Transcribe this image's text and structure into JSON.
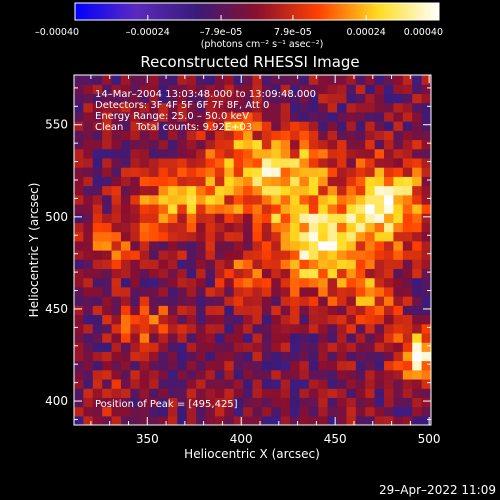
{
  "chart_data": {
    "type": "heatmap",
    "title": "Reconstructed RHESSI Image",
    "xlabel": "Heliocentric X (arcsec)",
    "ylabel": "Heliocentric Y (arcsec)",
    "xlim": [
      311,
      501
    ],
    "ylim": [
      387,
      577
    ],
    "x_ticks": [
      350,
      400,
      450,
      500
    ],
    "y_ticks": [
      400,
      450,
      500,
      550
    ],
    "colorbar": {
      "title": "(photons cm⁻² s⁻¹ asec⁻²)",
      "range": [
        -0.0004,
        0.0004
      ],
      "ticks": [
        -0.0004,
        -0.00024,
        -7.9e-05,
        7.9e-05,
        0.00024,
        0.0004
      ],
      "tick_labels": [
        "–0.00040",
        "–0.00024",
        "–7.9e–05",
        "7.9e–05",
        "0.00024",
        "0.00040"
      ],
      "colors": [
        "#0000ff",
        "#5a2abf",
        "#3a1b7a",
        "#8a0f2e",
        "#ff4000",
        "#ffdc20",
        "#ffffff"
      ]
    },
    "info_lines": [
      "14–Mar–2004 13:03:48.000 to 13:09:48.000",
      "Detectors: 3F 4F 5F 6F 7F 8F, Att 0",
      "Energy Range: 25.0 – 50.0 keV",
      "Clean    Total counts: 9.92E+03"
    ],
    "peak_label": "Position of Peak = [495,425]",
    "peak_position": [
      495,
      425
    ],
    "grid": false,
    "emission_sources": [
      {
        "x": 440,
        "y": 485,
        "sigma": 18,
        "amp": 0.00036
      },
      {
        "x": 478,
        "y": 508,
        "sigma": 16,
        "amp": 0.00034
      },
      {
        "x": 415,
        "y": 522,
        "sigma": 15,
        "amp": 0.0003
      },
      {
        "x": 495,
        "y": 425,
        "sigma": 9,
        "amp": 0.00038
      },
      {
        "x": 378,
        "y": 510,
        "sigma": 13,
        "amp": 0.00024
      },
      {
        "x": 350,
        "y": 505,
        "sigma": 11,
        "amp": 0.0002
      },
      {
        "x": 470,
        "y": 455,
        "sigma": 10,
        "amp": 0.0002
      },
      {
        "x": 330,
        "y": 485,
        "sigma": 9,
        "amp": 0.00018
      },
      {
        "x": 400,
        "y": 470,
        "sigma": 9,
        "amp": 0.00015
      },
      {
        "x": 395,
        "y": 545,
        "sigma": 12,
        "amp": 0.00016
      },
      {
        "x": 440,
        "y": 530,
        "sigma": 10,
        "amp": 0.00014
      },
      {
        "x": 343,
        "y": 440,
        "sigma": 8,
        "amp": 0.00017
      },
      {
        "x": 360,
        "y": 445,
        "sigma": 7,
        "amp": 0.00013
      },
      {
        "x": 330,
        "y": 403,
        "sigma": 7,
        "amp": 0.00012
      }
    ],
    "background_level": -4e-05
  },
  "footer": {
    "timestamp": "29–Apr–2022 11:09"
  }
}
